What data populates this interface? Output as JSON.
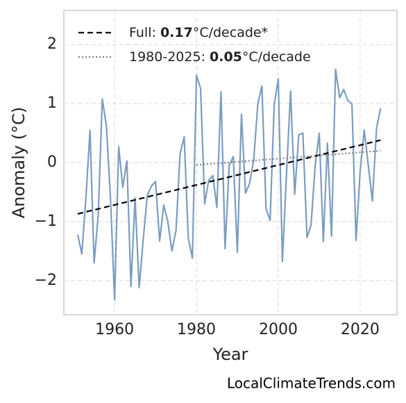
{
  "chart_data": {
    "type": "line",
    "xlabel": "Year",
    "ylabel": "Anomaly (°C)",
    "source": "LocalClimateTrends.com",
    "xlim": [
      1947.6,
      2029.0
    ],
    "ylim": [
      -2.58,
      2.58
    ],
    "xticks": [
      1960,
      1980,
      2000,
      2020
    ],
    "yticks": [
      {
        "value": -2,
        "label": "−2"
      },
      {
        "value": -1,
        "label": "−1"
      },
      0,
      1,
      2
    ],
    "grid": true,
    "legend": "upper left",
    "series": [
      {
        "color": "#7b9cc0",
        "style": "solid",
        "x": [
          1951,
          1952,
          1953,
          1954,
          1955,
          1956,
          1957,
          1958,
          1959,
          1960,
          1961,
          1962,
          1963,
          1964,
          1965,
          1966,
          1967,
          1968,
          1969,
          1970,
          1971,
          1972,
          1973,
          1974,
          1975,
          1976,
          1977,
          1978,
          1979,
          1980,
          1981,
          1982,
          1983,
          1984,
          1985,
          1986,
          1987,
          1988,
          1989,
          1990,
          1991,
          1992,
          1993,
          1994,
          1995,
          1996,
          1997,
          1998,
          1999,
          2000,
          2001,
          2002,
          2003,
          2004,
          2005,
          2006,
          2007,
          2008,
          2009,
          2010,
          2011,
          2012,
          2013,
          2014,
          2015,
          2016,
          2017,
          2018,
          2019,
          2020,
          2021,
          2022,
          2023,
          2024,
          2025
        ],
        "values": [
          -1.22,
          -1.55,
          -0.6,
          0.55,
          -1.7,
          -0.9,
          1.08,
          0.62,
          -0.6,
          -2.33,
          0.27,
          -0.42,
          0.03,
          -2.1,
          -0.6,
          -2.12,
          -1.3,
          -0.55,
          -0.4,
          -0.32,
          -1.33,
          -0.72,
          -1.0,
          -1.5,
          -1.15,
          0.15,
          0.44,
          -1.28,
          -1.62,
          1.48,
          1.26,
          -0.7,
          -0.3,
          -0.22,
          -0.76,
          1.2,
          -1.46,
          -0.05,
          0.1,
          -1.52,
          0.82,
          -0.52,
          -0.35,
          0.05,
          1.0,
          1.3,
          -0.78,
          -0.98,
          0.98,
          1.42,
          -1.68,
          -0.2,
          1.21,
          -0.54,
          0.47,
          0.5,
          -1.27,
          -1.06,
          -0.05,
          0.5,
          -1.34,
          0.33,
          -1.25,
          1.58,
          1.1,
          1.24,
          1.05,
          1.0,
          -1.32,
          -0.15,
          0.55,
          -0.05,
          -0.65,
          0.58,
          0.92
        ]
      },
      {
        "name": "Full: 0.17°C/decade*",
        "color": "#000000",
        "style": "dashed",
        "x": [
          1951,
          2025
        ],
        "values": [
          -0.87,
          0.38
        ]
      },
      {
        "name": "1980-2025: 0.05°C/decade",
        "color": "#808080",
        "style": "dotted",
        "x": [
          1980,
          2025
        ],
        "values": [
          -0.04,
          0.2
        ]
      }
    ]
  }
}
